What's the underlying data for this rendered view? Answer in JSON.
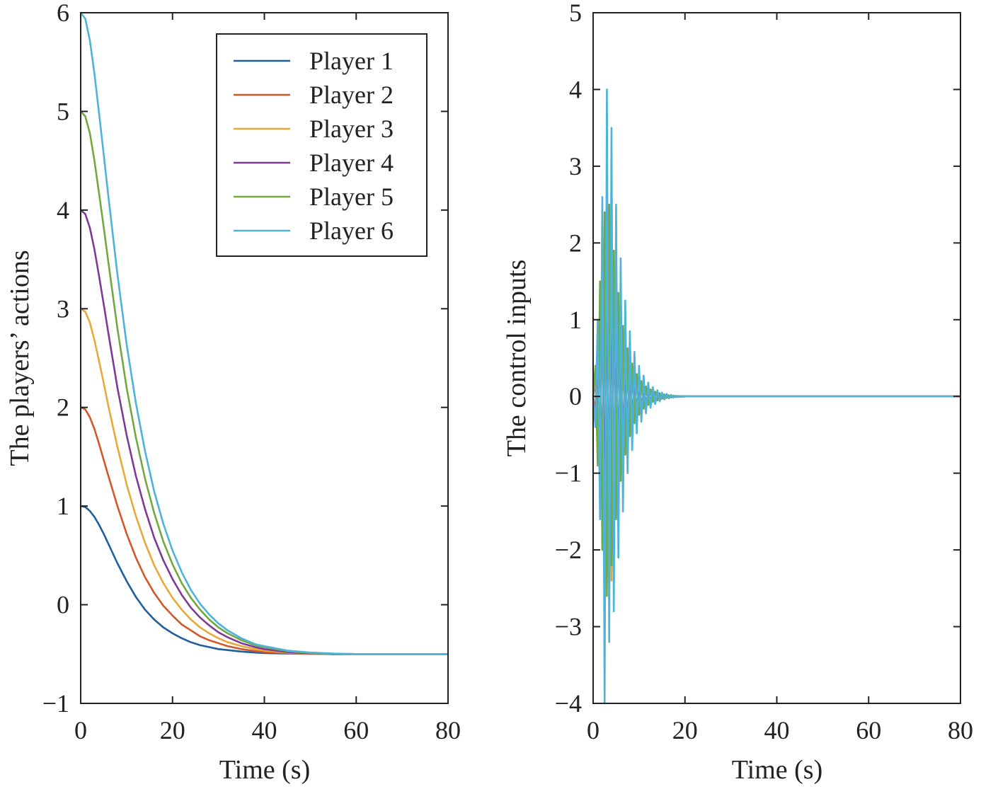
{
  "chart_data": [
    {
      "type": "line",
      "xlabel": "Time (s)",
      "ylabel": "The players’ actions",
      "xlim": [
        0,
        80
      ],
      "ylim": [
        -1,
        6
      ],
      "xticks": [
        "0",
        "20",
        "40",
        "60",
        "80"
      ],
      "yticks": [
        "−1",
        "0",
        "1",
        "2",
        "3",
        "4",
        "5",
        "6"
      ],
      "legend_position": "top-right",
      "x": [
        0,
        1,
        2,
        3,
        4,
        5,
        6,
        8,
        10,
        12,
        14,
        16,
        18,
        20,
        22,
        24,
        26,
        28,
        30,
        32,
        35,
        38,
        40,
        45,
        50,
        55,
        60,
        65,
        70,
        80
      ],
      "series": [
        {
          "name": "Player 1",
          "color": "#1f5f9c",
          "values": [
            1.0,
            0.99,
            0.95,
            0.89,
            0.81,
            0.72,
            0.62,
            0.42,
            0.24,
            0.08,
            -0.05,
            -0.15,
            -0.23,
            -0.29,
            -0.34,
            -0.38,
            -0.41,
            -0.43,
            -0.45,
            -0.46,
            -0.475,
            -0.485,
            -0.49,
            -0.495,
            -0.498,
            -0.5,
            -0.5,
            -0.5,
            -0.5,
            -0.5
          ]
        },
        {
          "name": "Player 2",
          "color": "#d4572a",
          "values": [
            2.0,
            1.98,
            1.9,
            1.78,
            1.63,
            1.47,
            1.31,
            1.0,
            0.72,
            0.48,
            0.28,
            0.12,
            -0.01,
            -0.11,
            -0.2,
            -0.26,
            -0.32,
            -0.36,
            -0.39,
            -0.42,
            -0.45,
            -0.47,
            -0.48,
            -0.49,
            -0.497,
            -0.5,
            -0.5,
            -0.5,
            -0.5,
            -0.5
          ]
        },
        {
          "name": "Player 3",
          "color": "#e8a93a",
          "values": [
            3.0,
            2.97,
            2.86,
            2.68,
            2.47,
            2.25,
            2.02,
            1.6,
            1.22,
            0.9,
            0.63,
            0.4,
            0.22,
            0.07,
            -0.05,
            -0.15,
            -0.23,
            -0.29,
            -0.34,
            -0.38,
            -0.42,
            -0.45,
            -0.465,
            -0.485,
            -0.495,
            -0.5,
            -0.5,
            -0.5,
            -0.5,
            -0.5
          ]
        },
        {
          "name": "Player 4",
          "color": "#7d3a96",
          "values": [
            4.0,
            3.96,
            3.82,
            3.6,
            3.33,
            3.05,
            2.76,
            2.2,
            1.72,
            1.31,
            0.97,
            0.68,
            0.45,
            0.26,
            0.1,
            -0.03,
            -0.13,
            -0.21,
            -0.28,
            -0.33,
            -0.39,
            -0.43,
            -0.45,
            -0.48,
            -0.493,
            -0.5,
            -0.5,
            -0.5,
            -0.5,
            -0.5
          ]
        },
        {
          "name": "Player 5",
          "color": "#72a93f",
          "values": [
            5.0,
            4.95,
            4.78,
            4.5,
            4.17,
            3.83,
            3.48,
            2.8,
            2.2,
            1.7,
            1.28,
            0.93,
            0.64,
            0.41,
            0.22,
            0.07,
            -0.05,
            -0.15,
            -0.23,
            -0.29,
            -0.36,
            -0.41,
            -0.43,
            -0.47,
            -0.49,
            -0.497,
            -0.5,
            -0.5,
            -0.5,
            -0.5
          ]
        },
        {
          "name": "Player 6",
          "color": "#4db3d9",
          "values": [
            6.0,
            5.94,
            5.72,
            5.38,
            4.98,
            4.57,
            4.15,
            3.35,
            2.64,
            2.05,
            1.56,
            1.15,
            0.82,
            0.55,
            0.33,
            0.15,
            0.01,
            -0.1,
            -0.19,
            -0.26,
            -0.34,
            -0.4,
            -0.42,
            -0.465,
            -0.485,
            -0.495,
            -0.5,
            -0.5,
            -0.5,
            -0.5
          ]
        }
      ]
    },
    {
      "type": "line",
      "xlabel": "Time (s)",
      "ylabel": "The control inputs",
      "xlim": [
        0,
        80
      ],
      "ylim": [
        -4,
        5
      ],
      "xticks": [
        "0",
        "20",
        "40",
        "60",
        "80"
      ],
      "yticks": [
        "−4",
        "−3",
        "−2",
        "−1",
        "0",
        "1",
        "2",
        "3",
        "4",
        "5"
      ],
      "description_values": {
        "peak_max": 4.0,
        "peak_min": -4.0,
        "oscillation_end_time": 20,
        "settled_value": 0
      },
      "x": [
        0.0,
        0.5,
        1.0,
        1.5,
        2.0,
        2.5,
        3.0,
        3.5,
        4.0,
        4.5,
        5.0,
        5.5,
        6.0,
        6.5,
        7.0,
        7.5,
        8.0,
        8.5,
        9.0,
        9.5,
        10.0,
        10.5,
        11.0,
        11.5,
        12.0,
        12.5,
        13.0,
        13.5,
        14.0,
        14.5,
        15.0,
        15.5,
        16.0,
        16.5,
        17.0,
        17.5,
        18.0,
        18.5,
        19.0,
        19.5,
        20.0,
        21.0,
        22.0,
        80.0
      ],
      "series": [
        {
          "color": "#1f5f9c",
          "values": [
            0.0,
            0.2,
            -0.3,
            0.6,
            -0.9,
            1.2,
            -1.4,
            1.3,
            -1.2,
            1.0,
            -0.9,
            0.8,
            -0.7,
            0.6,
            -0.5,
            0.45,
            -0.4,
            0.35,
            -0.3,
            0.26,
            -0.22,
            0.19,
            -0.16,
            0.13,
            -0.11,
            0.09,
            -0.07,
            0.06,
            -0.05,
            0.04,
            -0.03,
            0.025,
            -0.02,
            0.015,
            -0.012,
            0.009,
            -0.007,
            0.005,
            -0.004,
            0.003,
            0.0,
            0.0,
            0.0,
            0.0
          ]
        },
        {
          "color": "#d4572a",
          "values": [
            0.0,
            -0.2,
            0.5,
            -0.9,
            1.3,
            -1.6,
            1.8,
            -1.9,
            1.7,
            -1.4,
            1.2,
            -1.0,
            0.85,
            -0.7,
            0.6,
            -0.5,
            0.42,
            -0.35,
            0.3,
            -0.25,
            0.2,
            -0.17,
            0.14,
            -0.11,
            0.09,
            -0.07,
            0.06,
            -0.05,
            0.04,
            -0.03,
            0.025,
            -0.02,
            0.015,
            -0.012,
            0.009,
            -0.007,
            0.005,
            -0.004,
            0.003,
            -0.002,
            0.0,
            0.0,
            0.0,
            0.0
          ]
        },
        {
          "color": "#e8a93a",
          "values": [
            0.0,
            0.3,
            -0.7,
            1.2,
            -1.7,
            2.1,
            -2.3,
            2.2,
            -2.4,
            1.9,
            -1.6,
            1.3,
            -1.1,
            0.9,
            -0.75,
            0.62,
            -0.5,
            0.42,
            -0.35,
            0.29,
            -0.24,
            0.2,
            -0.16,
            0.13,
            -0.1,
            0.08,
            -0.065,
            0.05,
            -0.04,
            0.032,
            -0.025,
            0.02,
            -0.015,
            0.012,
            -0.009,
            0.007,
            -0.005,
            0.004,
            -0.003,
            0.002,
            0.0,
            0.0,
            0.0,
            0.0
          ]
        },
        {
          "color": "#7d3a96",
          "values": [
            0.0,
            -0.3,
            0.8,
            -1.3,
            1.9,
            -2.1,
            2.3,
            -1.8,
            2.0,
            -1.7,
            1.4,
            -1.2,
            1.0,
            -0.85,
            0.7,
            -0.58,
            0.48,
            -0.4,
            0.33,
            -0.27,
            0.22,
            -0.18,
            0.15,
            -0.12,
            0.1,
            -0.08,
            0.065,
            -0.05,
            0.04,
            -0.032,
            0.025,
            -0.02,
            0.015,
            -0.012,
            0.009,
            -0.007,
            0.005,
            -0.004,
            0.003,
            -0.002,
            0.0,
            0.0,
            0.0,
            0.0
          ]
        },
        {
          "color": "#72a93f",
          "values": [
            0.0,
            0.4,
            -0.9,
            1.5,
            -2.0,
            2.4,
            -2.6,
            2.5,
            -2.2,
            1.9,
            -1.6,
            1.35,
            -1.1,
            0.92,
            -0.76,
            0.63,
            -0.52,
            0.43,
            -0.35,
            0.29,
            -0.24,
            0.2,
            -0.16,
            0.13,
            -0.11,
            0.09,
            -0.07,
            0.055,
            -0.045,
            0.035,
            -0.028,
            0.022,
            -0.017,
            0.013,
            -0.01,
            0.008,
            -0.006,
            0.004,
            -0.003,
            0.002,
            0.0,
            0.0,
            0.0,
            0.0
          ]
        },
        {
          "color": "#4db3d9",
          "values": [
            0.0,
            -0.4,
            1.0,
            -1.6,
            2.6,
            -4.0,
            4.0,
            -3.2,
            3.5,
            -2.8,
            2.5,
            -2.1,
            1.8,
            -1.5,
            1.25,
            -1.0,
            0.85,
            -0.7,
            0.58,
            -0.48,
            0.4,
            -0.33,
            0.27,
            -0.22,
            0.18,
            -0.15,
            0.12,
            -0.1,
            0.08,
            -0.065,
            0.05,
            -0.04,
            0.032,
            -0.025,
            0.02,
            -0.015,
            0.012,
            -0.009,
            0.007,
            -0.005,
            0.003,
            0.0,
            0.0,
            0.0
          ]
        }
      ]
    }
  ]
}
